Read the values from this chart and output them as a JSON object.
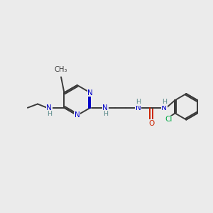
{
  "bg_color": "#ebebeb",
  "bond_color": "#3a3a3a",
  "N_color": "#0000cc",
  "O_color": "#cc2200",
  "Cl_color": "#00aa44",
  "H_color": "#5a8a8a",
  "C_color": "#3a3a3a",
  "line_width": 1.4,
  "figsize": [
    3.0,
    3.0
  ],
  "dpi": 100,
  "xlim": [
    0,
    10
  ],
  "ylim": [
    0,
    10
  ]
}
